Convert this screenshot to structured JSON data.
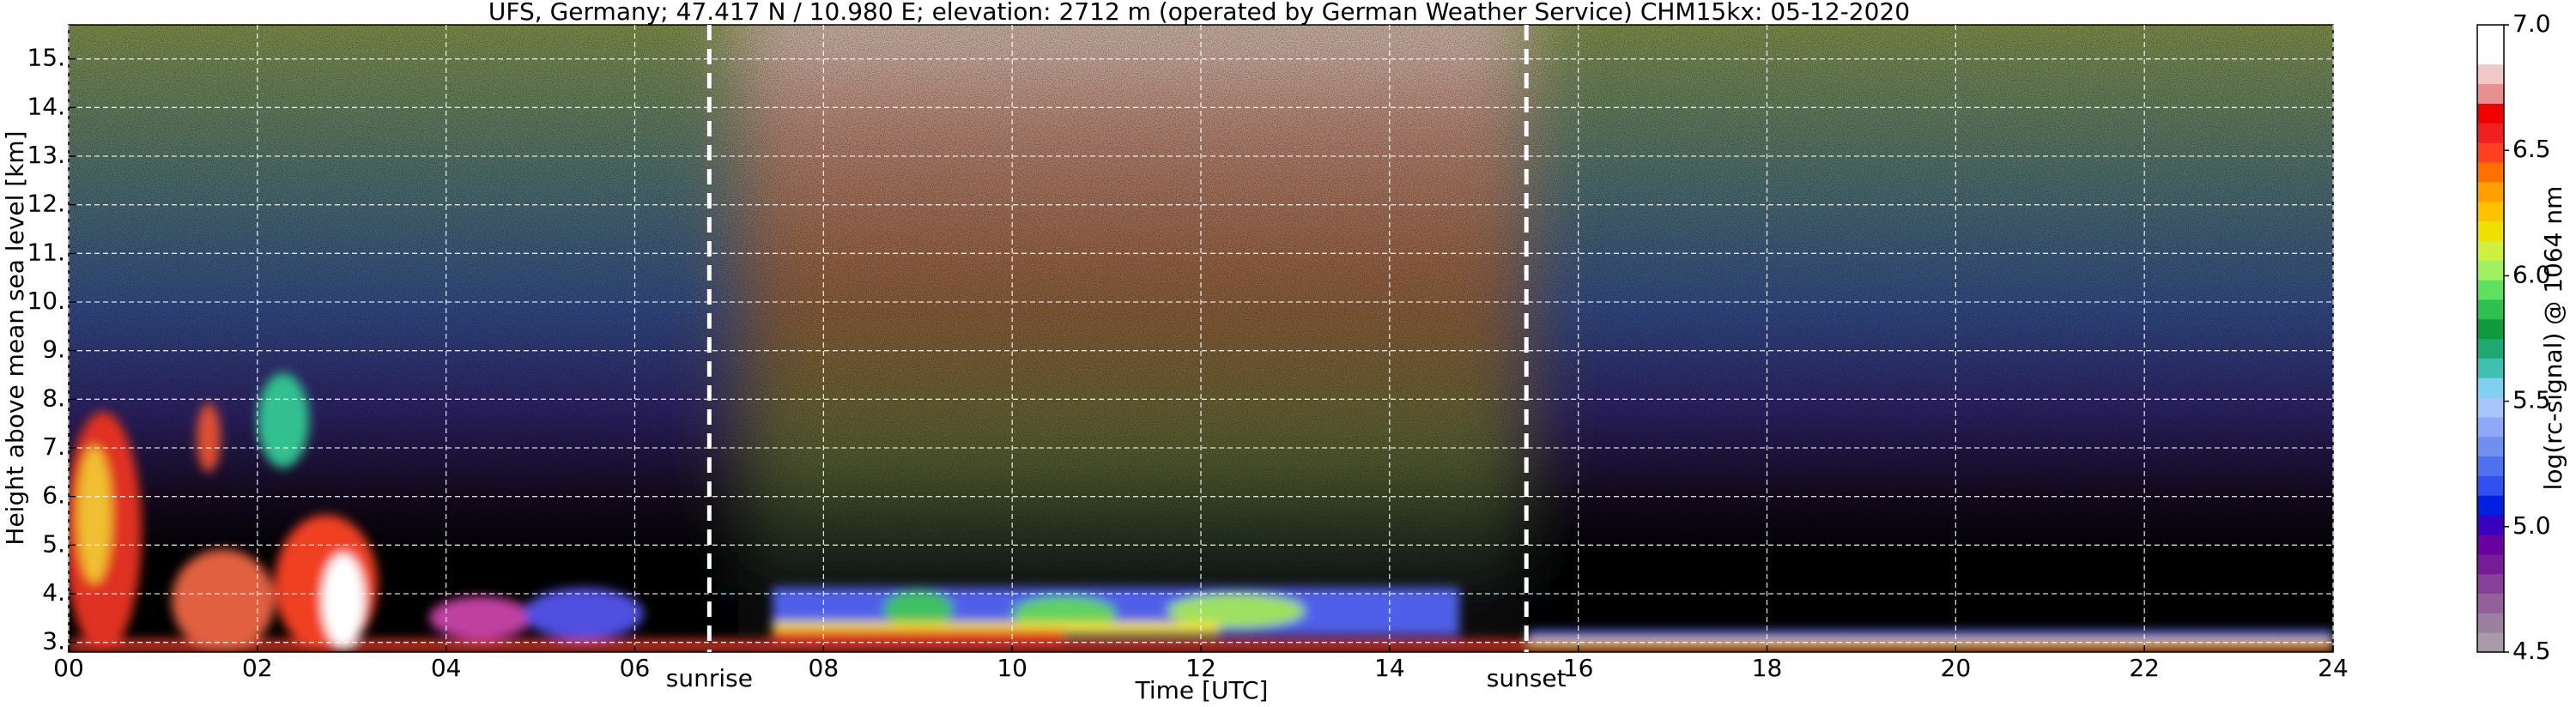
{
  "chart_data": {
    "type": "heatmap",
    "title": "UFS, Germany; 47.417 N / 10.980 E; elevation: 2712 m  (operated by German Weather Service)    CHM15kx: 05-12-2020",
    "xlabel": "Time [UTC]",
    "ylabel": "Height above mean sea level [km]",
    "xlim": [
      0,
      24
    ],
    "xticks": [
      {
        "value": 0,
        "label": "00"
      },
      {
        "value": 2,
        "label": "02"
      },
      {
        "value": 4,
        "label": "04"
      },
      {
        "value": 6,
        "label": "06"
      },
      {
        "value": 8,
        "label": "08"
      },
      10,
      12,
      14,
      16,
      18,
      20,
      22,
      24
    ],
    "ylim": [
      2.8,
      15.7
    ],
    "yticks": [
      {
        "value": 3,
        "label": "3."
      },
      {
        "value": 4,
        "label": "4."
      },
      {
        "value": 5,
        "label": "5."
      },
      {
        "value": 6,
        "label": "6."
      },
      {
        "value": 7,
        "label": "7."
      },
      {
        "value": 8,
        "label": "8."
      },
      {
        "value": 9,
        "label": "9."
      },
      {
        "value": 10,
        "label": "10."
      },
      {
        "value": 11,
        "label": "11."
      },
      {
        "value": 12,
        "label": "12."
      },
      {
        "value": 13,
        "label": "13."
      },
      {
        "value": 14,
        "label": "14."
      },
      {
        "value": 15,
        "label": "15."
      }
    ],
    "grid": true,
    "annotations": [
      {
        "x": 6.79,
        "text": "sunrise"
      },
      {
        "x": 15.45,
        "text": "sunset"
      }
    ],
    "colorbar": {
      "label": "log(rc-signal) @ 1064 nm",
      "lim": [
        4.5,
        7.0
      ],
      "ticks": [
        4.5,
        {
          "value": 5.0,
          "label": "5.0"
        },
        5.5,
        {
          "value": 6.0,
          "label": "6.0"
        },
        6.5,
        {
          "value": 7.0,
          "label": "7.0"
        }
      ],
      "colors": [
        "#a89aa8",
        "#9c80a0",
        "#94609c",
        "#86409a",
        "#761c98",
        "#6a00a0",
        "#3a00c0",
        "#0020e0",
        "#3050f0",
        "#5070f0",
        "#7090f0",
        "#90a8f8",
        "#a8c4f8",
        "#80d0f0",
        "#40c0b0",
        "#20a870",
        "#109a40",
        "#30c050",
        "#60e060",
        "#a0f060",
        "#d0f040",
        "#f0e000",
        "#ffc000",
        "#ffa000",
        "#ff7000",
        "#ff4020",
        "#f02020",
        "#f00000",
        "#e89090",
        "#f0c8c8",
        "#ffffff",
        "#ffffff"
      ]
    }
  }
}
